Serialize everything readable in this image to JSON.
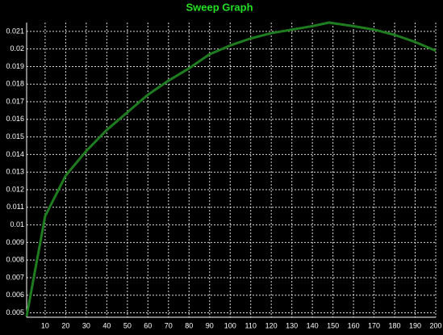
{
  "chart_data": {
    "type": "line",
    "title": "Sweep Graph",
    "x": [
      1,
      10,
      20,
      30,
      40,
      50,
      60,
      70,
      80,
      90,
      100,
      110,
      120,
      130,
      140,
      148,
      160,
      170,
      180,
      190,
      200
    ],
    "values": [
      0.0048,
      0.0105,
      0.0128,
      0.0142,
      0.0154,
      0.0164,
      0.0174,
      0.0182,
      0.0189,
      0.0197,
      0.0202,
      0.0206,
      0.0209,
      0.0211,
      0.0213,
      0.0215,
      0.0213,
      0.0211,
      0.0208,
      0.0204,
      0.0199
    ],
    "color": "#1e7d1e",
    "xlim": [
      1,
      200
    ],
    "xticks": [
      10,
      20,
      30,
      40,
      50,
      60,
      70,
      80,
      90,
      100,
      110,
      120,
      130,
      140,
      150,
      160,
      170,
      180,
      190,
      200
    ],
    "ylim": [
      0.00475,
      0.0215
    ],
    "yticks": [
      0.005,
      0.006,
      0.007,
      0.008,
      0.009,
      0.01,
      0.011,
      0.012,
      0.013,
      0.014,
      0.015,
      0.016,
      0.017,
      0.018,
      0.019,
      0.02,
      0.021
    ],
    "grid": true
  }
}
